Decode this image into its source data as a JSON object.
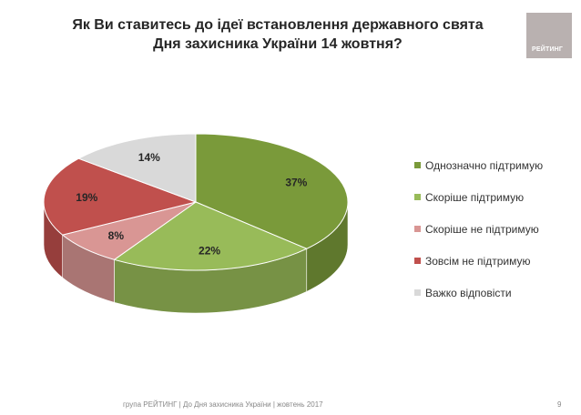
{
  "header": {
    "title_line1": "Як Ви ставитесь до ідеї встановлення державного свята",
    "title_line2": "Дня захисника України 14 жовтня?"
  },
  "logo": {
    "text": "РЕЙТИНГ"
  },
  "chart_data": {
    "type": "pie",
    "title": "Як Ви ставитесь до ідеї встановлення державного свята Дня захисника України 14 жовтня?",
    "categories": [
      "Однозначно підтримую",
      "Скоріше підтримую",
      "Скоріше не підтримую",
      "Зовсім не підтримую",
      "Важко відповісти"
    ],
    "values": [
      37,
      22,
      8,
      19,
      14
    ],
    "value_labels": [
      "37%",
      "22%",
      "8%",
      "19%",
      "14%"
    ],
    "colors": [
      "#7a9a3a",
      "#98bb59",
      "#d99694",
      "#c0504d",
      "#d9d9d9"
    ],
    "legend_position": "right"
  },
  "footer": {
    "text": "група РЕЙТИНГ  |  До Дня захисника України |  жовтень 2017",
    "page_number": "9"
  }
}
